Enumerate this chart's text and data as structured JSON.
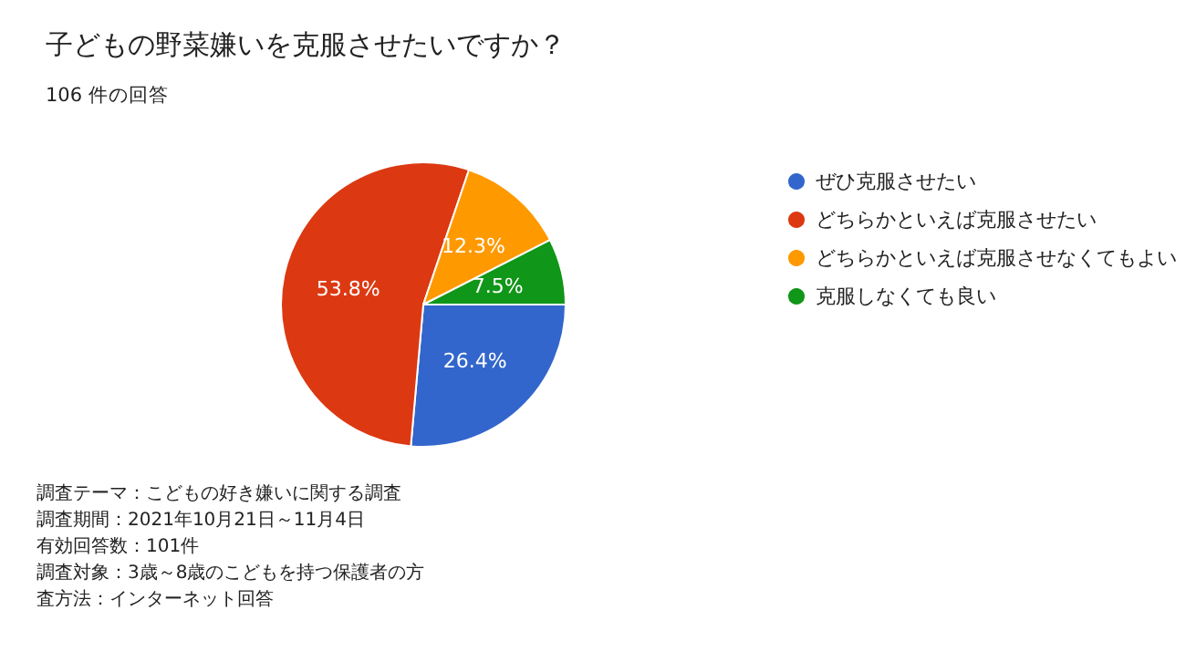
{
  "chart_data": {
    "type": "pie",
    "title": "子どもの野菜嫌いを克服させたいですか？",
    "subtitle": "106 件の回答",
    "categories": [
      "ぜひ克服させたい",
      "どちらかといえば克服させたい",
      "どちらかといえば克服させなくてもよい",
      "克服しなくても良い"
    ],
    "values": [
      26.4,
      53.8,
      12.3,
      7.5
    ],
    "colors": [
      "#3366cc",
      "#dc3912",
      "#ff9900",
      "#109618"
    ],
    "value_labels": [
      "26.4%",
      "53.8%",
      "12.3%",
      "7.5%"
    ],
    "legend": "top right",
    "annotations": [
      "調査テーマ：こどもの好き嫌いに関する調査",
      "調査期間：2021年10月21日～11月4日",
      "有効回答数：101件",
      "調査対象：3歳～8歳のこどもを持つ保護者の方",
      "査方法：インターネット回答"
    ]
  }
}
